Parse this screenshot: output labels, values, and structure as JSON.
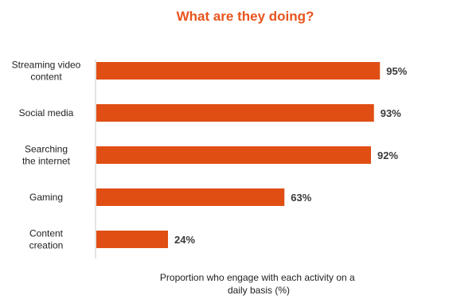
{
  "chart_data": {
    "type": "bar",
    "orientation": "horizontal",
    "title": "What are they doing?",
    "categories": [
      [
        "Streaming video",
        "content"
      ],
      [
        "Social media"
      ],
      [
        "Searching",
        "the internet"
      ],
      [
        "Gaming"
      ],
      [
        "Content",
        "creation"
      ]
    ],
    "values": [
      95,
      93,
      92,
      63,
      24
    ],
    "value_labels": [
      "95%",
      "93%",
      "92%",
      "63%",
      "24%"
    ],
    "xlabel": [
      "Proportion who engage with each activity on a",
      "daily basis (%)"
    ],
    "ylabel": "",
    "xlim": [
      0,
      100
    ],
    "grid": false,
    "legend": "none",
    "colors": {
      "bar": "#e04e14",
      "title": "#e8541c",
      "axis": "#c8c8c8"
    }
  }
}
